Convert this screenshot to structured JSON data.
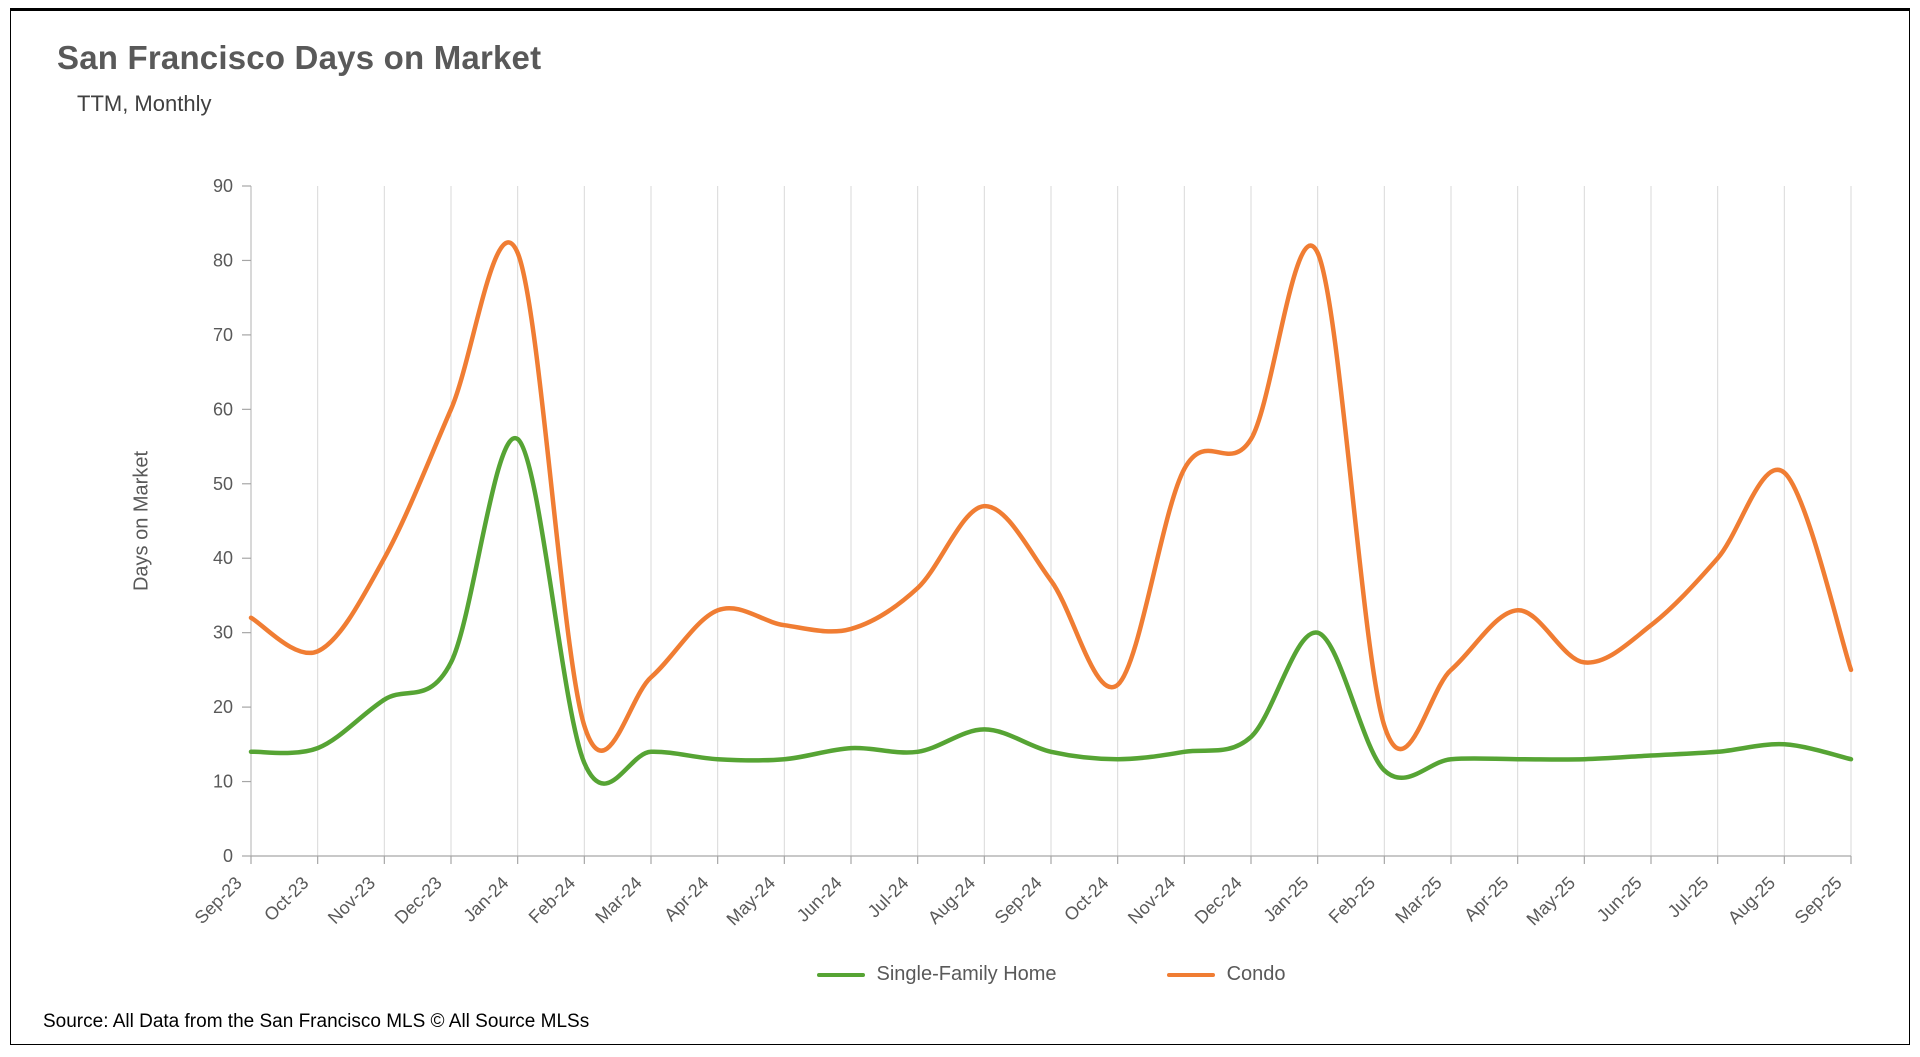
{
  "header": {
    "title": "San Francisco Days on Market",
    "subtitle": "TTM, Monthly"
  },
  "footer": {
    "source": "Source: All Data from the San Francisco MLS © All Source MLSs"
  },
  "chart_data": {
    "type": "line",
    "smooth": true,
    "title": "San Francisco Days on Market",
    "subtitle": "TTM, Monthly",
    "ylabel": "Days on Market",
    "xlabel": "",
    "ylim": [
      0,
      90
    ],
    "ytick_step": 10,
    "grid": "vertical",
    "legend_position": "bottom",
    "categories": [
      "Sep-23",
      "Oct-23",
      "Nov-23",
      "Dec-23",
      "Jan-24",
      "Feb-24",
      "Mar-24",
      "Apr-24",
      "May-24",
      "Jun-24",
      "Jul-24",
      "Aug-24",
      "Sep-24",
      "Oct-24",
      "Nov-24",
      "Dec-24",
      "Jan-25",
      "Feb-25",
      "Mar-25",
      "Apr-25",
      "May-25",
      "Jun-25",
      "Jul-25",
      "Aug-25",
      "Sep-25"
    ],
    "series": [
      {
        "name": "Single-Family Home",
        "color": "#56a434",
        "values": [
          14,
          14.5,
          21,
          26,
          56,
          12.5,
          14,
          13,
          13,
          14.5,
          14,
          17,
          14,
          13,
          14,
          16,
          30,
          11.5,
          13,
          13,
          13,
          13.5,
          14,
          15,
          13
        ]
      },
      {
        "name": "Condo",
        "color": "#f07d33",
        "values": [
          32,
          27.5,
          40,
          60,
          81,
          17.5,
          24,
          33,
          31,
          30.5,
          36,
          47,
          37,
          23,
          52,
          56,
          81,
          17.5,
          25,
          33,
          26,
          31,
          40,
          51.5,
          25
        ]
      }
    ]
  }
}
